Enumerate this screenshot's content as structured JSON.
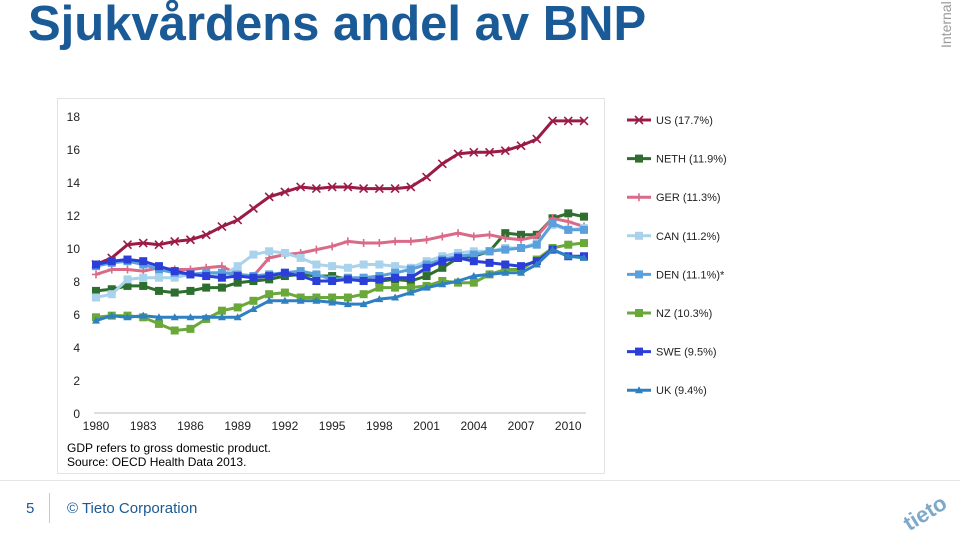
{
  "slide": {
    "title": "Sjukvårdens andel av BNP",
    "classification": "Internal",
    "notes": [
      "GDP refers to gross domestic product.",
      "Source: OECD Health Data 2013."
    ],
    "page_number": "5",
    "copyright": "© Tieto Corporation",
    "logo_text": "tieto"
  },
  "chart_data": {
    "type": "line",
    "title": "",
    "xlabel": "",
    "ylabel": "",
    "x": [
      1980,
      1981,
      1982,
      1983,
      1984,
      1985,
      1986,
      1987,
      1988,
      1989,
      1990,
      1991,
      1992,
      1993,
      1994,
      1995,
      1996,
      1997,
      1998,
      1999,
      2000,
      2001,
      2002,
      2003,
      2004,
      2005,
      2006,
      2007,
      2008,
      2009,
      2010,
      2011
    ],
    "x_tick_labels": [
      "1980",
      "1983",
      "1986",
      "1989",
      "1992",
      "1995",
      "1998",
      "2001",
      "2004",
      "2007",
      "2010"
    ],
    "y_ticks": [
      0,
      2,
      4,
      6,
      8,
      10,
      12,
      14,
      16,
      18
    ],
    "ylim": [
      0,
      18
    ],
    "grid": false,
    "legend_position": "right",
    "series": [
      {
        "name": "US (17.7%)",
        "color": "#9b1b47",
        "marker": "x",
        "values": [
          9.0,
          9.4,
          10.2,
          10.3,
          10.2,
          10.4,
          10.5,
          10.8,
          11.3,
          11.7,
          12.4,
          13.1,
          13.4,
          13.7,
          13.6,
          13.7,
          13.7,
          13.6,
          13.6,
          13.6,
          13.7,
          14.3,
          15.1,
          15.7,
          15.8,
          15.8,
          15.9,
          16.2,
          16.6,
          17.7,
          17.7,
          17.7
        ]
      },
      {
        "name": "NETH (11.9%)",
        "color": "#2e6e2e",
        "marker": "square",
        "values": [
          7.4,
          7.5,
          7.7,
          7.7,
          7.4,
          7.3,
          7.4,
          7.6,
          7.6,
          7.9,
          8.0,
          8.1,
          8.3,
          8.4,
          8.3,
          8.3,
          8.1,
          8.1,
          8.0,
          8.1,
          8.0,
          8.3,
          8.8,
          9.4,
          9.5,
          9.8,
          10.9,
          10.8,
          10.8,
          11.8,
          12.1,
          11.9
        ]
      },
      {
        "name": "GER (11.3%)",
        "color": "#d96a88",
        "marker": "plus",
        "values": [
          8.4,
          8.7,
          8.7,
          8.6,
          8.8,
          8.7,
          8.7,
          8.8,
          8.9,
          8.4,
          8.3,
          9.4,
          9.6,
          9.7,
          9.9,
          10.1,
          10.4,
          10.3,
          10.3,
          10.4,
          10.4,
          10.5,
          10.7,
          10.9,
          10.7,
          10.8,
          10.6,
          10.5,
          10.7,
          11.8,
          11.6,
          11.3
        ]
      },
      {
        "name": "CAN (11.2%)",
        "color": "#a9d2ec",
        "marker": "square",
        "values": [
          7.0,
          7.2,
          8.1,
          8.2,
          8.2,
          8.2,
          8.4,
          8.4,
          8.3,
          8.9,
          9.6,
          9.8,
          9.7,
          9.4,
          9.0,
          8.9,
          8.8,
          9.0,
          9.0,
          8.9,
          8.8,
          9.2,
          9.5,
          9.7,
          9.8,
          9.8,
          10.0,
          10.0,
          10.3,
          11.4,
          11.1,
          11.2
        ]
      },
      {
        "name": "DEN (11.1%)*",
        "color": "#5aa0dc",
        "marker": "square",
        "values": [
          8.9,
          9.1,
          9.2,
          9.0,
          8.7,
          8.5,
          8.4,
          8.5,
          8.5,
          8.4,
          8.3,
          8.4,
          8.5,
          8.6,
          8.4,
          8.1,
          8.2,
          8.2,
          8.3,
          8.5,
          8.7,
          9.0,
          9.3,
          9.5,
          9.6,
          9.8,
          9.9,
          10.0,
          10.2,
          11.5,
          11.1,
          11.1
        ]
      },
      {
        "name": "NZ (10.3%)",
        "color": "#6aa83a",
        "marker": "square",
        "values": [
          5.8,
          5.9,
          5.9,
          5.8,
          5.4,
          5.0,
          5.1,
          5.7,
          6.2,
          6.4,
          6.8,
          7.2,
          7.3,
          7.0,
          7.0,
          7.0,
          7.0,
          7.2,
          7.6,
          7.6,
          7.6,
          7.7,
          8.0,
          7.9,
          7.9,
          8.4,
          8.7,
          8.7,
          9.3,
          10.0,
          10.2,
          10.3
        ]
      },
      {
        "name": "SWE (9.5%)",
        "color": "#2b3fd8",
        "marker": "square",
        "values": [
          9.0,
          9.2,
          9.3,
          9.2,
          8.9,
          8.6,
          8.4,
          8.3,
          8.2,
          8.3,
          8.2,
          8.3,
          8.5,
          8.3,
          8.0,
          8.0,
          8.1,
          8.0,
          8.1,
          8.2,
          8.2,
          8.8,
          9.2,
          9.4,
          9.2,
          9.1,
          9.0,
          8.9,
          9.2,
          9.9,
          9.5,
          9.5
        ]
      },
      {
        "name": "UK (9.4%)",
        "color": "#2f80c0",
        "marker": "triangle",
        "values": [
          5.6,
          5.9,
          5.8,
          5.9,
          5.8,
          5.8,
          5.8,
          5.8,
          5.8,
          5.8,
          6.3,
          6.8,
          6.8,
          6.8,
          6.8,
          6.7,
          6.6,
          6.6,
          6.9,
          7.0,
          7.3,
          7.6,
          7.8,
          8.0,
          8.3,
          8.4,
          8.5,
          8.5,
          9.0,
          9.9,
          9.5,
          9.4
        ]
      }
    ]
  }
}
